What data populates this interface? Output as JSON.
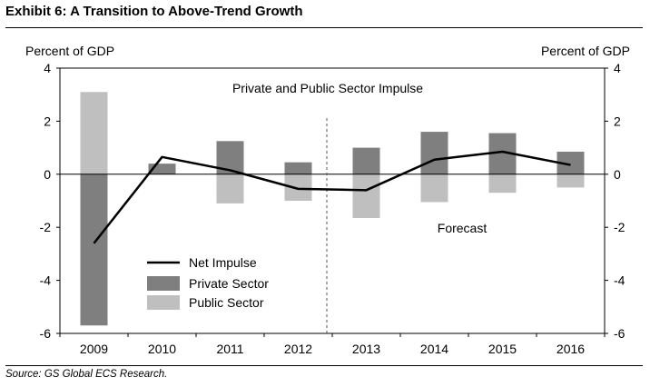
{
  "header": {
    "title": "Exhibit 6: A Transition to Above-Trend Growth"
  },
  "footer": {
    "source": "Source: GS Global ECS Research."
  },
  "chart_data": {
    "type": "bar",
    "title": "Private and Public Sector Impulse",
    "ylabel_left": "Percent of GDP",
    "ylabel_right": "Percent of GDP",
    "ylim": [
      -6,
      4
    ],
    "yticks": [
      4,
      2,
      0,
      -2,
      -4,
      -6
    ],
    "categories": [
      "2009",
      "2010",
      "2011",
      "2012",
      "2013",
      "2014",
      "2015",
      "2016"
    ],
    "series": [
      {
        "name": "Private Sector",
        "kind": "bar",
        "color": "#7f7f7f",
        "values": [
          -5.7,
          0.4,
          1.25,
          0.45,
          1.0,
          1.6,
          1.55,
          0.85
        ]
      },
      {
        "name": "Public Sector",
        "kind": "bar",
        "color": "#bfbfbf",
        "values": [
          3.1,
          0.25,
          -1.1,
          -1.0,
          -1.65,
          -1.05,
          -0.7,
          -0.5
        ]
      },
      {
        "name": "Net Impulse",
        "kind": "line",
        "color": "#000000",
        "values": [
          -2.6,
          0.65,
          0.15,
          -0.55,
          -0.6,
          0.55,
          0.85,
          0.35
        ]
      }
    ],
    "forecast_label": "Forecast",
    "legend": [
      "Net Impulse",
      "Private Sector",
      "Public Sector"
    ]
  }
}
